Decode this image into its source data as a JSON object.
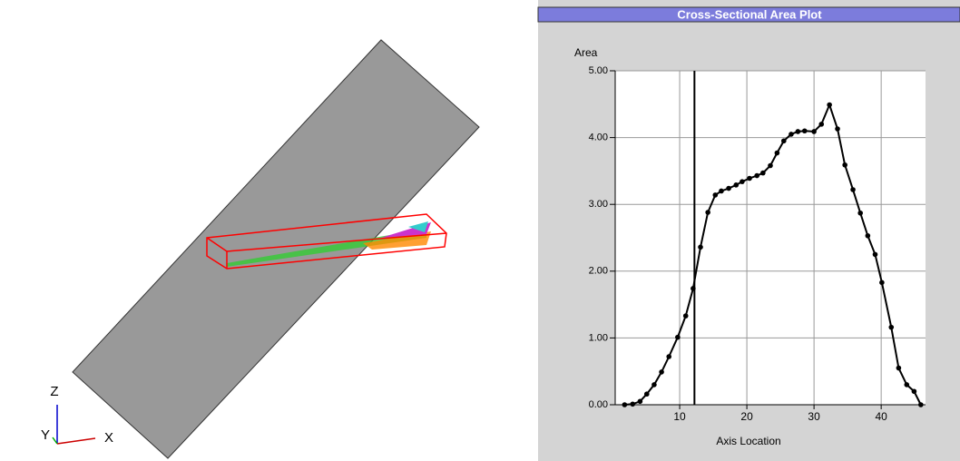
{
  "viewport": {
    "axis_labels": [
      "Z",
      "Y",
      "X"
    ]
  },
  "chart_data": {
    "type": "line",
    "title": "Cross-Sectional Area Plot",
    "y_label": "Area",
    "x_label": "Axis Location",
    "x": [
      1.8,
      3.0,
      4.1,
      5.1,
      6.2,
      7.3,
      8.4,
      9.7,
      10.9,
      12.0,
      13.1,
      14.2,
      15.3,
      16.2,
      17.3,
      18.4,
      19.3,
      20.4,
      21.5,
      22.4,
      23.5,
      24.5,
      25.5,
      26.6,
      27.6,
      28.6,
      30.0,
      31.1,
      32.3,
      33.5,
      34.6,
      35.8,
      36.9,
      38.0,
      39.1,
      40.1,
      41.5,
      42.6,
      43.8,
      44.9,
      45.9
    ],
    "values": [
      0.0,
      0.01,
      0.05,
      0.16,
      0.3,
      0.49,
      0.72,
      1.01,
      1.33,
      1.74,
      2.36,
      2.88,
      3.14,
      3.2,
      3.24,
      3.29,
      3.34,
      3.39,
      3.43,
      3.47,
      3.58,
      3.77,
      3.95,
      4.05,
      4.09,
      4.1,
      4.09,
      4.2,
      4.49,
      4.13,
      3.59,
      3.22,
      2.87,
      2.53,
      2.25,
      1.83,
      1.16,
      0.55,
      0.3,
      0.2,
      0.0
    ],
    "color": "#000000",
    "marker_x": 12.2,
    "xlim": [
      0.4,
      46.6
    ],
    "xticks": [
      10,
      20,
      30,
      40
    ],
    "ylim": [
      0,
      5
    ],
    "yticks": [
      {
        "value": 0,
        "label": "0.00"
      },
      {
        "value": 1,
        "label": "1.00"
      },
      {
        "value": 2,
        "label": "2.00"
      },
      {
        "value": 3,
        "label": "3.00"
      },
      {
        "value": 4,
        "label": "4.00"
      },
      {
        "value": 5,
        "label": "5.00"
      }
    ],
    "grid": true
  }
}
